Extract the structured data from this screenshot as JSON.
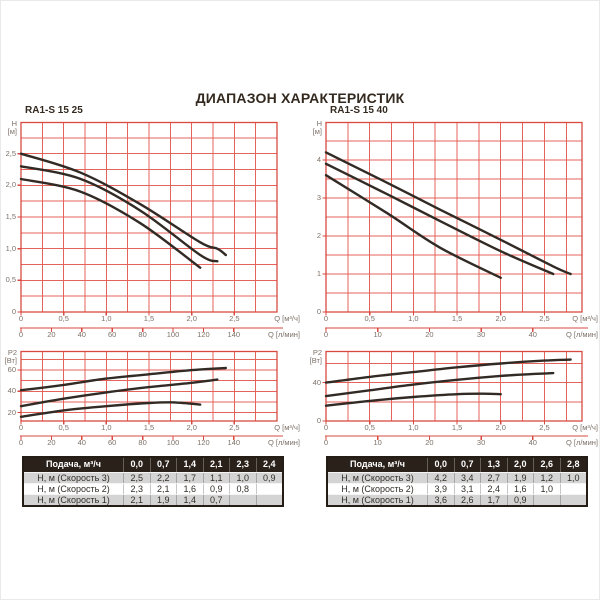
{
  "title": "ДИАПАЗОН ХАРАКТЕРИСТИК",
  "colors": {
    "grid_red": "#e4635a",
    "axis_red": "#d84a41",
    "curve": "#322b25",
    "axis_text": "#7d7168",
    "heading_text": "#33291f",
    "table_header_bg": "#2a211a",
    "table_alt_row": "#d4d4d4"
  },
  "chart_data": [
    {
      "panel": 0,
      "role": "H",
      "type": "line",
      "model": "RA1-S 15 25",
      "y_axis_name": "H",
      "y_axis_unit": "[м]",
      "x_axis_label": "Q [м³/ч]",
      "x2_axis_label": "Q [л/мин]",
      "xlim": [
        0,
        3.0
      ],
      "ylim": [
        0,
        3.0
      ],
      "x_grid_step": 0.25,
      "y_grid_step": 0.25,
      "x_ticks": [
        {
          "v": 0,
          "t": "0"
        },
        {
          "v": 0.5,
          "t": "0,5"
        },
        {
          "v": 1.0,
          "t": "1,0"
        },
        {
          "v": 1.5,
          "t": "1,5"
        },
        {
          "v": 2.0,
          "t": "2,0"
        },
        {
          "v": 2.5,
          "t": "2,5"
        }
      ],
      "y_ticks": [
        {
          "v": 0,
          "t": "0"
        },
        {
          "v": 0.5,
          "t": "0,5"
        },
        {
          "v": 1.0,
          "t": "1,0"
        },
        {
          "v": 1.5,
          "t": "1,5"
        },
        {
          "v": 2.0,
          "t": "2,0"
        },
        {
          "v": 2.5,
          "t": "2,5"
        }
      ],
      "x2_ticks": [
        "0",
        "20",
        "40",
        "60",
        "80",
        "100",
        "120",
        "140"
      ],
      "series": [
        {
          "key": "speed-3",
          "name": "Скорость 3",
          "x": [
            0,
            0.7,
            1.4,
            2.1,
            2.3,
            2.4
          ],
          "y": [
            2.5,
            2.2,
            1.7,
            1.1,
            1.0,
            0.9
          ]
        },
        {
          "key": "speed-2",
          "name": "Скорость 2",
          "x": [
            0,
            0.7,
            1.4,
            2.1,
            2.3
          ],
          "y": [
            2.3,
            2.1,
            1.6,
            0.9,
            0.8
          ]
        },
        {
          "key": "speed-1",
          "name": "Скорость 1",
          "x": [
            0,
            0.7,
            1.4,
            2.1
          ],
          "y": [
            2.1,
            1.9,
            1.4,
            0.7
          ]
        }
      ]
    },
    {
      "panel": 0,
      "role": "P2",
      "type": "line",
      "y_axis_name": "P2",
      "y_axis_unit": "[Вт]",
      "x_axis_label": "Q [м³/ч]",
      "x2_axis_label": "Q [л/мин]",
      "xlim": [
        0,
        3.0
      ],
      "ylim": [
        12,
        78
      ],
      "x_grid_step": 0.25,
      "y_grid_step": 10,
      "x_ticks": [
        {
          "v": 0,
          "t": "0"
        },
        {
          "v": 0.5,
          "t": "0,5"
        },
        {
          "v": 1.0,
          "t": "1,0"
        },
        {
          "v": 1.5,
          "t": "1,5"
        },
        {
          "v": 2.0,
          "t": "2,0"
        },
        {
          "v": 2.5,
          "t": "2,5"
        }
      ],
      "y_ticks": [
        {
          "v": 20,
          "t": "20"
        },
        {
          "v": 40,
          "t": "40"
        },
        {
          "v": 60,
          "t": "60"
        }
      ],
      "x2_ticks": [
        "0",
        "20",
        "40",
        "60",
        "80",
        "100",
        "120",
        "140"
      ],
      "series": [
        {
          "key": "speed-3",
          "name": "Скорость 3",
          "x": [
            0,
            0.5,
            1.0,
            1.5,
            2.0,
            2.4
          ],
          "y": [
            41,
            46,
            52,
            56,
            60,
            62
          ]
        },
        {
          "key": "speed-2",
          "name": "Скорость 2",
          "x": [
            0,
            0.5,
            1.0,
            1.5,
            2.0,
            2.3
          ],
          "y": [
            26,
            33,
            39,
            44,
            48,
            51
          ]
        },
        {
          "key": "speed-1",
          "name": "Скорость 1",
          "x": [
            0,
            0.5,
            1.0,
            1.5,
            1.8,
            2.1
          ],
          "y": [
            16,
            22,
            26,
            29,
            29.5,
            27.5
          ]
        }
      ]
    },
    {
      "panel": 1,
      "role": "H",
      "type": "line",
      "model": "RA1-S 15 40",
      "y_axis_name": "H",
      "y_axis_unit": "[м]",
      "x_axis_label": "Q [м³/ч]",
      "x2_axis_label": "Q [л/мин]",
      "xlim": [
        0,
        2.93
      ],
      "ylim": [
        0,
        5.0
      ],
      "x_grid_step": 0.25,
      "y_grid_step": 0.5,
      "x_ticks": [
        {
          "v": 0,
          "t": "0"
        },
        {
          "v": 0.5,
          "t": "0,5"
        },
        {
          "v": 1.0,
          "t": "1,0"
        },
        {
          "v": 1.5,
          "t": "1,5"
        },
        {
          "v": 2.0,
          "t": "2,0"
        },
        {
          "v": 2.5,
          "t": "2,5"
        }
      ],
      "y_ticks": [
        {
          "v": 0,
          "t": "0"
        },
        {
          "v": 1,
          "t": "1"
        },
        {
          "v": 2,
          "t": "2"
        },
        {
          "v": 3,
          "t": "3"
        },
        {
          "v": 4,
          "t": "4"
        }
      ],
      "x2_ticks": [
        "0",
        "10",
        "20",
        "30",
        "40"
      ],
      "series": [
        {
          "key": "speed-3",
          "name": "Скорость 3",
          "x": [
            0,
            0.7,
            1.3,
            2.0,
            2.6,
            2.8
          ],
          "y": [
            4.2,
            3.4,
            2.7,
            1.9,
            1.2,
            1.0
          ]
        },
        {
          "key": "speed-2",
          "name": "Скорость 2",
          "x": [
            0,
            0.7,
            1.3,
            2.0,
            2.6
          ],
          "y": [
            3.9,
            3.1,
            2.4,
            1.6,
            1.0
          ]
        },
        {
          "key": "speed-1",
          "name": "Скорость 1",
          "x": [
            0,
            0.7,
            1.3,
            2.0
          ],
          "y": [
            3.6,
            2.6,
            1.7,
            0.9
          ]
        }
      ]
    },
    {
      "panel": 1,
      "role": "P2",
      "type": "line",
      "y_axis_name": "P2",
      "y_axis_unit": "[Вт]",
      "x_axis_label": "Q [м³/ч]",
      "x2_axis_label": "Q [л/мин]",
      "xlim": [
        0,
        2.93
      ],
      "ylim": [
        0,
        73
      ],
      "x_grid_step": 0.25,
      "y_grid_step": 20,
      "x_ticks": [
        {
          "v": 0,
          "t": "0"
        },
        {
          "v": 0.5,
          "t": "0,5"
        },
        {
          "v": 1.0,
          "t": "1,0"
        },
        {
          "v": 1.5,
          "t": "1,5"
        },
        {
          "v": 2.0,
          "t": "2,0"
        },
        {
          "v": 2.5,
          "t": "2,5"
        }
      ],
      "y_ticks": [
        {
          "v": 0,
          "t": "0"
        },
        {
          "v": 40,
          "t": "40"
        }
      ],
      "x2_ticks": [
        "0",
        "10",
        "20",
        "30",
        "40"
      ],
      "series": [
        {
          "key": "speed-3",
          "name": "Скорость 3",
          "x": [
            0,
            0.5,
            1.0,
            1.5,
            2.0,
            2.5,
            2.8
          ],
          "y": [
            40,
            46,
            51,
            56,
            60,
            63,
            64
          ]
        },
        {
          "key": "speed-2",
          "name": "Скорость 2",
          "x": [
            0,
            0.5,
            1.0,
            1.5,
            2.0,
            2.6
          ],
          "y": [
            26,
            32,
            38,
            43,
            47,
            50
          ]
        },
        {
          "key": "speed-1",
          "name": "Скорость 1",
          "x": [
            0,
            0.5,
            1.0,
            1.5,
            1.8,
            2.0
          ],
          "y": [
            16,
            21,
            25,
            28,
            28.5,
            28
          ]
        }
      ]
    }
  ],
  "tables": [
    {
      "header": [
        "Подача, м³/ч",
        "0,0",
        "0,7",
        "1,4",
        "2,1",
        "2,3",
        "2,4"
      ],
      "rows": [
        [
          "Н, м (Скорость 3)",
          "2,5",
          "2,2",
          "1,7",
          "1,1",
          "1,0",
          "0,9"
        ],
        [
          "Н, м (Скорость 2)",
          "2,3",
          "2,1",
          "1,6",
          "0,9",
          "0,8",
          ""
        ],
        [
          "Н, м (Скорость 1)",
          "2,1",
          "1,9",
          "1,4",
          "0,7",
          "",
          ""
        ]
      ]
    },
    {
      "header": [
        "Подача, м³/ч",
        "0,0",
        "0,7",
        "1,3",
        "2,0",
        "2,6",
        "2,8"
      ],
      "rows": [
        [
          "Н, м (Скорость 3)",
          "4,2",
          "3,4",
          "2,7",
          "1,9",
          "1,2",
          "1,0"
        ],
        [
          "Н, м (Скорость 2)",
          "3,9",
          "3,1",
          "2,4",
          "1,6",
          "1,0",
          ""
        ],
        [
          "Н, м (Скорость 1)",
          "3,6",
          "2,6",
          "1,7",
          "0,9",
          "",
          ""
        ]
      ]
    }
  ]
}
